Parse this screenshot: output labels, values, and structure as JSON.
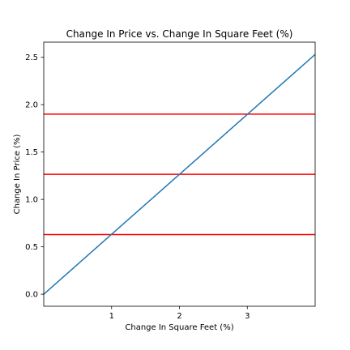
{
  "chart_data": {
    "type": "line",
    "title": "Change In Price vs. Change In Square Feet (%)",
    "xlabel": "Change In Square Feet (%)",
    "ylabel": "Change In Price (%)",
    "xlim": [
      0,
      4
    ],
    "ylim": [
      -0.127,
      2.66
    ],
    "xticks": [
      1,
      2,
      3
    ],
    "xtick_labels": [
      "1",
      "2",
      "3"
    ],
    "yticks": [
      0.0,
      0.5,
      1.0,
      1.5,
      2.0,
      2.5
    ],
    "ytick_labels": [
      "0.0",
      "0.5",
      "1.0",
      "1.5",
      "2.0",
      "2.5"
    ],
    "grid": false,
    "series": [
      {
        "color": "#1f77b4",
        "x": [
          0,
          4
        ],
        "y": [
          0.0,
          2.53
        ]
      }
    ],
    "hlines": [
      {
        "y": 0.63,
        "color": "#ff0000"
      },
      {
        "y": 1.265,
        "color": "#ff0000"
      },
      {
        "y": 1.9,
        "color": "#ff0000"
      }
    ]
  }
}
